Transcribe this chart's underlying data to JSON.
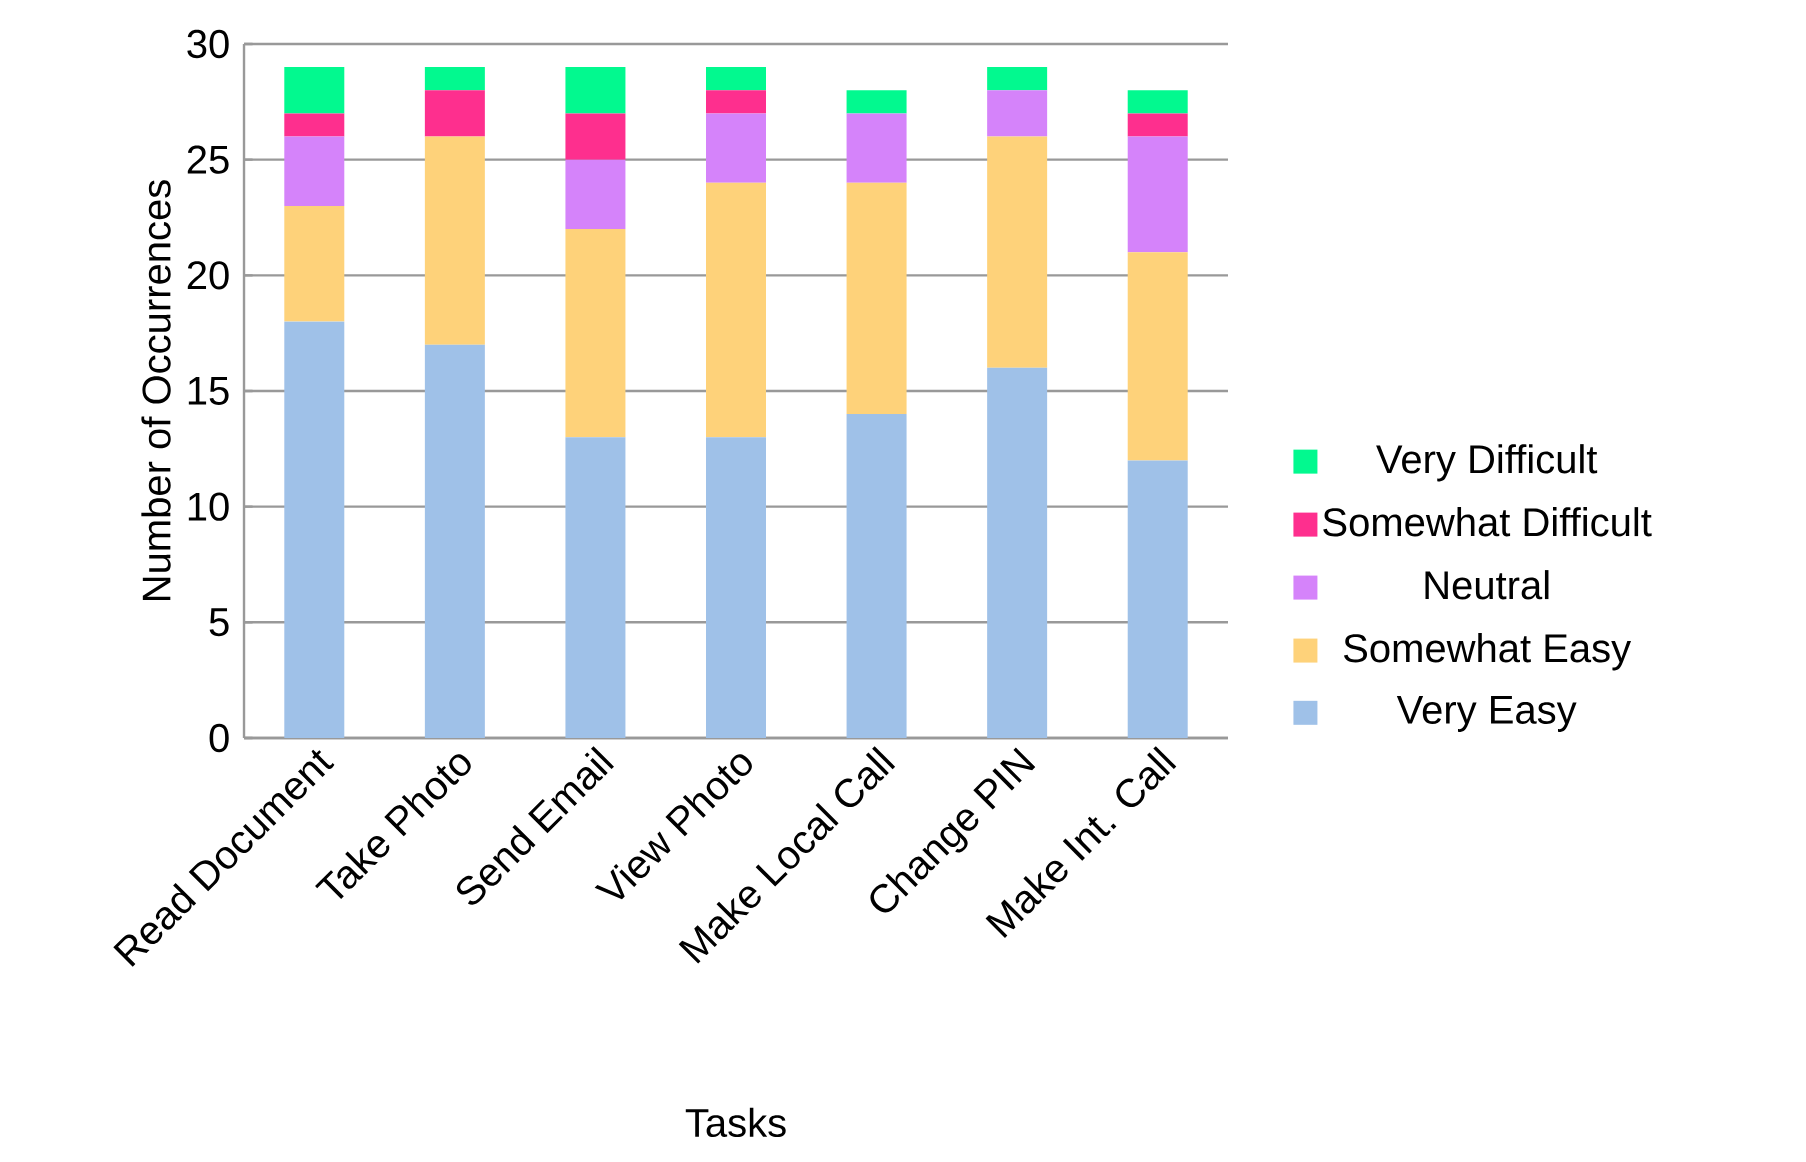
{
  "chart_data": {
    "type": "bar",
    "stacked": true,
    "xlabel": "Tasks",
    "ylabel": "Number of Occurrences",
    "categories": [
      "Read Document",
      "Take Photo",
      "Send Email",
      "View Photo",
      "Make Local Call",
      "Change PIN",
      "Make Int. Call"
    ],
    "series": [
      {
        "name": "Very Easy",
        "color": "#9fc1e8",
        "values": [
          18,
          17,
          13,
          13,
          14,
          16,
          12
        ]
      },
      {
        "name": "Somewhat Easy",
        "color": "#fed27a",
        "values": [
          5,
          9,
          9,
          11,
          10,
          10,
          9
        ]
      },
      {
        "name": "Neutral",
        "color": "#d583fa",
        "values": [
          3,
          0,
          3,
          3,
          3,
          2,
          5
        ]
      },
      {
        "name": "Somewhat Difficult",
        "color": "#fe2f8e",
        "values": [
          1,
          2,
          2,
          1,
          0,
          0,
          1
        ]
      },
      {
        "name": "Very Difficult",
        "color": "#02f98f",
        "values": [
          2,
          1,
          2,
          1,
          1,
          1,
          1
        ]
      }
    ],
    "ylim": [
      0,
      30
    ],
    "yticks": [
      0,
      5,
      10,
      15,
      20,
      25,
      30
    ],
    "grid": "y",
    "legend": "right"
  }
}
